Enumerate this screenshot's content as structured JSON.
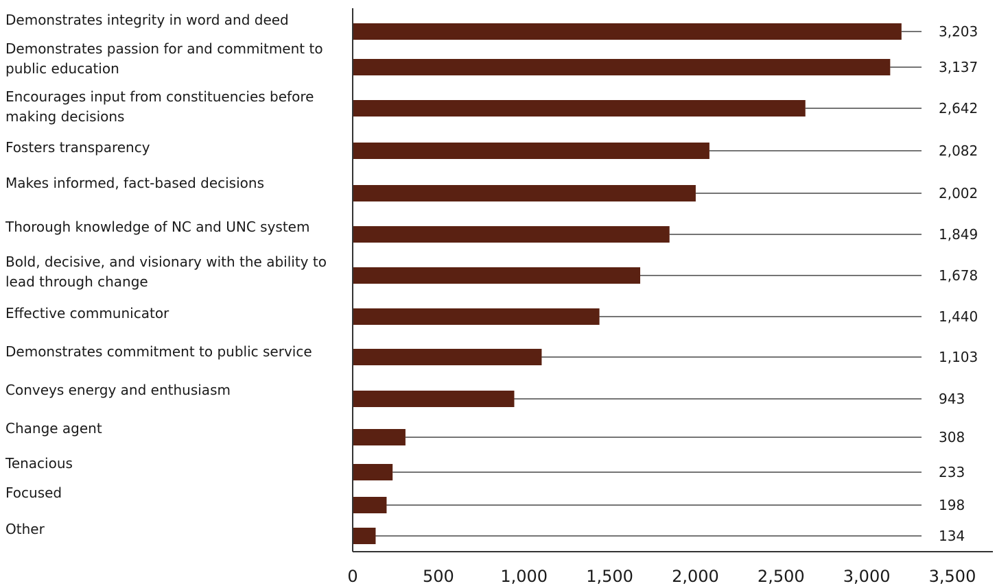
{
  "chart_data": {
    "type": "bar",
    "orientation": "horizontal",
    "title": "",
    "xlabel": "",
    "ylabel": "",
    "categories": [
      [
        "Demonstrates integrity in word and deed"
      ],
      [
        "Demonstrates passion for and commitment to",
        "public education"
      ],
      [
        "Encourages input from constituencies before",
        "making decisions"
      ],
      [
        "Fosters transparency"
      ],
      [
        "Makes informed, fact-based decisions"
      ],
      [
        "Thorough knowledge of NC and UNC system"
      ],
      [
        "Bold, decisive, and visionary with the ability to",
        "lead through change"
      ],
      [
        "Effective communicator"
      ],
      [
        "Demonstrates commitment to public service"
      ],
      [
        "Conveys energy and enthusiasm"
      ],
      [
        "Change agent"
      ],
      [
        "Tenacious"
      ],
      [
        "Focused"
      ],
      [
        "Other"
      ]
    ],
    "values": [
      3203,
      3137,
      2642,
      2082,
      2002,
      1849,
      1678,
      1440,
      1103,
      943,
      308,
      233,
      198,
      134
    ],
    "value_labels": [
      "3,203",
      "3,137",
      "2,642",
      "2,082",
      "2,002",
      "1,849",
      "1,678",
      "1,440",
      "1,103",
      "943",
      "308",
      "233",
      "198",
      "134"
    ],
    "xlim": [
      0,
      3500
    ],
    "xticks": [
      0,
      500,
      1000,
      1500,
      2000,
      2500,
      3000,
      3500
    ],
    "xtick_labels": [
      "0",
      "500",
      "1,000",
      "1,500",
      "2,000",
      "2,500",
      "3,000",
      "3,500"
    ],
    "grid": false,
    "legend": "none",
    "colors": {
      "bar": "#5a2112",
      "axis": "#333333",
      "leader": "#222222"
    }
  }
}
